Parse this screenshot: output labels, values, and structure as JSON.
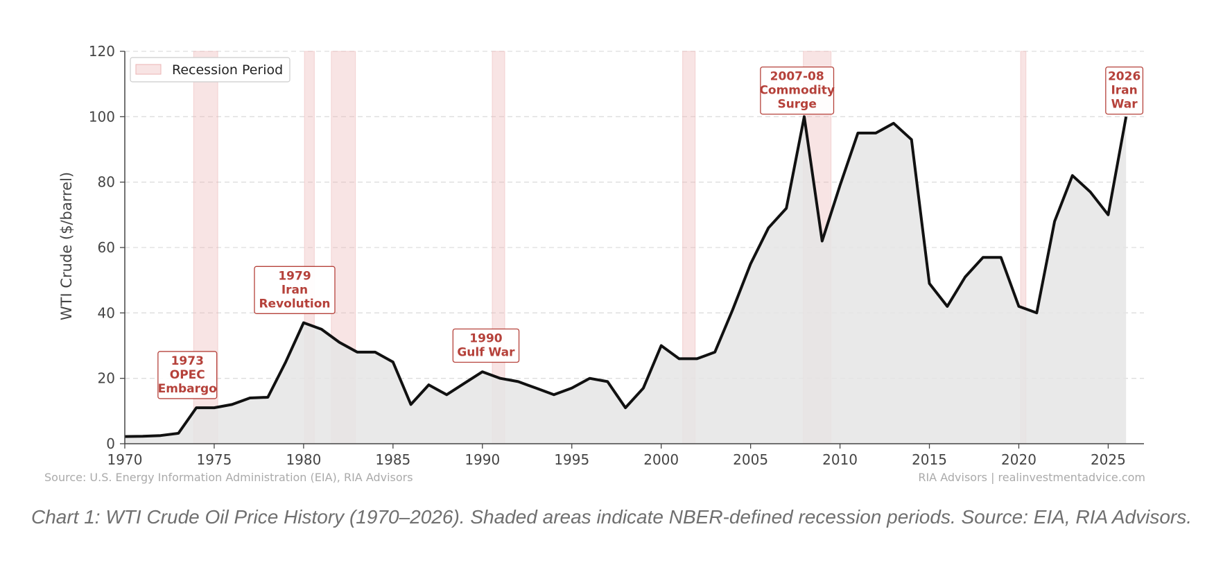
{
  "colors": {
    "line": "#111111",
    "area_fill": "#e5e5e5",
    "recession_fill": "#ebb3b3",
    "annotation": "#b5413a",
    "grid": "#dddddd",
    "axis_text": "#444444",
    "footer_text": "#aaaaaa",
    "caption_text": "#6f6f6f"
  },
  "chart_data": {
    "type": "area",
    "title": "",
    "xlabel": "",
    "ylabel": "WTI Crude ($/barrel)",
    "xlim": [
      1970,
      2027
    ],
    "ylim": [
      0,
      120
    ],
    "y_ticks": [
      0,
      20,
      40,
      60,
      80,
      100,
      120
    ],
    "x_ticks": [
      1970,
      1975,
      1980,
      1985,
      1990,
      1995,
      2000,
      2005,
      2010,
      2015,
      2020,
      2025
    ],
    "grid": "horizontal dashed",
    "legend": {
      "placement": "top-left",
      "label": "Recession Period"
    },
    "series": [
      {
        "x": [
          1970,
          1971,
          1972,
          1973,
          1974,
          1975,
          1976,
          1977,
          1978,
          1979,
          1980,
          1981,
          1982,
          1983,
          1984,
          1985,
          1986,
          1987,
          1988,
          1989,
          1990,
          1991,
          1992,
          1993,
          1994,
          1995,
          1996,
          1997,
          1998,
          1999,
          2000,
          2001,
          2002,
          2003,
          2004,
          2005,
          2006,
          2007,
          2008,
          2009,
          2010,
          2011,
          2012,
          2013,
          2014,
          2015,
          2016,
          2017,
          2018,
          2019,
          2020,
          2021,
          2022,
          2023,
          2024,
          2025,
          2026
        ],
        "values": [
          2.2,
          2.3,
          2.5,
          3.2,
          11,
          11,
          12,
          14,
          14.2,
          25,
          37,
          35,
          31,
          28,
          28,
          25,
          12,
          18,
          15,
          18.5,
          22,
          20,
          19,
          17,
          15,
          17,
          20,
          19,
          11,
          17,
          30,
          26,
          26,
          28,
          41,
          55,
          66,
          72,
          100,
          62,
          79,
          95,
          95,
          98,
          93,
          49,
          42,
          51,
          57,
          57,
          42,
          40,
          68,
          82,
          77,
          70,
          100
        ]
      }
    ],
    "recessions": [
      [
        1973.85,
        1975.2
      ],
      [
        1980.05,
        1980.6
      ],
      [
        1981.55,
        1982.9
      ],
      [
        1990.55,
        1991.25
      ],
      [
        2001.2,
        2001.9
      ],
      [
        2007.95,
        2009.5
      ],
      [
        2020.1,
        2020.4
      ]
    ],
    "annotations": [
      {
        "lines": [
          "1973",
          "OPEC",
          "Embargo"
        ],
        "x": 1973.5,
        "y": 21
      },
      {
        "lines": [
          "1979",
          "Iran",
          "Revolution"
        ],
        "x": 1979.5,
        "y": 47
      },
      {
        "lines": [
          "1990",
          "Gulf War"
        ],
        "x": 1990.2,
        "y": 30
      },
      {
        "lines": [
          "2007-08",
          "Commodity",
          "Surge"
        ],
        "x": 2007.6,
        "y": 108
      },
      {
        "lines": [
          "2026",
          "Iran",
          "War"
        ],
        "x": 2025.9,
        "y": 108
      }
    ]
  },
  "footer": {
    "source_left": "Source: U.S. Energy Information Administration (EIA), RIA Advisors",
    "source_right": "RIA Advisors | realinvestmentadvice.com"
  },
  "caption": "Chart 1: WTI Crude Oil Price History (1970–2026). Shaded areas indicate NBER-defined recession periods. Source: EIA, RIA Advisors."
}
